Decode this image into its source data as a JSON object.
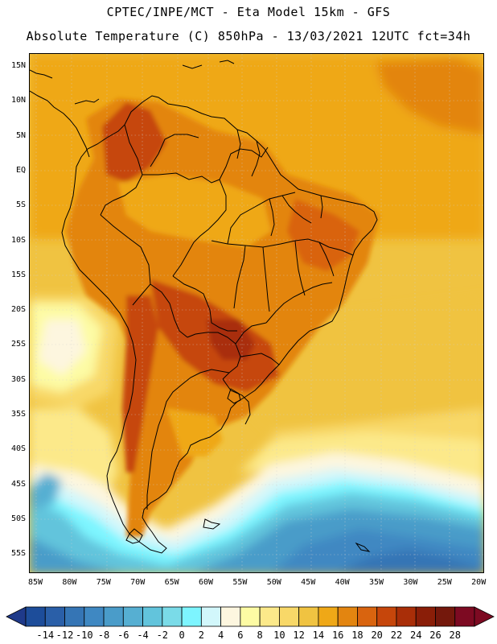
{
  "header": {
    "line1": "CPTEC/INPE/MCT -  Eta Model 15km - GFS",
    "line2": "Absolute Temperature (C) 850hPa - 13/03/2021 12UTC fct=34h"
  },
  "axes": {
    "lat_labels": [
      "15N",
      "10N",
      "5N",
      "EQ",
      "5S",
      "10S",
      "15S",
      "20S",
      "25S",
      "30S",
      "35S",
      "40S",
      "45S",
      "50S",
      "55S"
    ],
    "lon_labels": [
      "85W",
      "80W",
      "75W",
      "70W",
      "65W",
      "60W",
      "55W",
      "50W",
      "45W",
      "40W",
      "35W",
      "30W",
      "25W",
      "20W"
    ]
  },
  "legend": {
    "labels": [
      "-14",
      "-12",
      "-10",
      "-8",
      "-6",
      "-4",
      "-2",
      "0",
      "2",
      "4",
      "6",
      "8",
      "10",
      "12",
      "14",
      "16",
      "18",
      "20",
      "22",
      "24",
      "26",
      "28"
    ],
    "colors": [
      "#1d4d9a",
      "#2a5fa8",
      "#3575b5",
      "#3f88c2",
      "#4a9cc9",
      "#56afd2",
      "#62c4dc",
      "#7adbe8",
      "#7df5ff",
      "#d2f7fb",
      "#fdf6df",
      "#fdfba4",
      "#fce98a",
      "#f8d868",
      "#f0c341",
      "#efa817",
      "#e38510",
      "#d9640f",
      "#c6460b",
      "#a92e08",
      "#8a1e08",
      "#74180c",
      "#7d0a22"
    ],
    "arrow_left_color": "#1f3a8a",
    "arrow_right_color": "#7d0a22"
  }
}
